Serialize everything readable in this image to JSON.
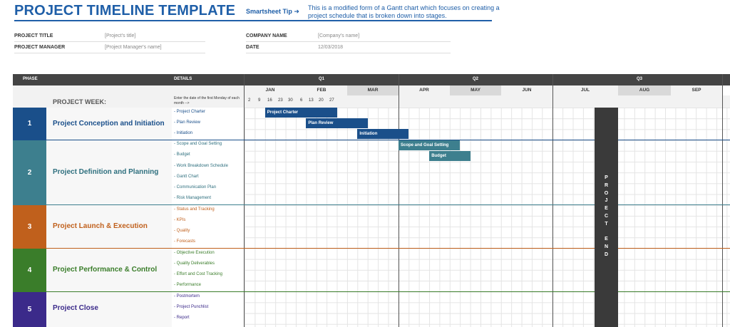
{
  "header": {
    "title": "PROJECT TIMELINE TEMPLATE",
    "tip_label": "Smartsheet Tip ➜",
    "tip_text": "This is a modified form of a Gantt chart which focuses on creating a project schedule that is broken down into stages."
  },
  "info": {
    "project_title_label": "PROJECT TITLE",
    "project_title_value": "[Project's title]",
    "project_manager_label": "PROJECT MANAGER",
    "project_manager_value": "[Project Manager's name]",
    "company_label": "COMPANY NAME",
    "company_value": "[Company's name]",
    "date_label": "DATE",
    "date_value": "12/03/2018"
  },
  "table": {
    "phase_header": "PHASE",
    "details_header": "DETAILS",
    "quarters": [
      "Q1",
      "Q2",
      "Q3"
    ],
    "months": [
      "JAN",
      "FEB",
      "MAR",
      "APR",
      "MAY",
      "JUN",
      "JUL",
      "AUG",
      "SEP"
    ],
    "week_label": "PROJECT WEEK:",
    "week_note": "Enter the date of the first Monday of each month -->",
    "dates": [
      "2",
      "9",
      "16",
      "23",
      "30",
      "6",
      "13",
      "20",
      "27"
    ]
  },
  "phases": [
    {
      "num": "1",
      "name": "Project Conception and Initiation",
      "color": "#1a4f8a",
      "text_color": "#1a4f8a",
      "details": [
        "- Project Charter",
        "- Plan Review",
        "- Initiation"
      ]
    },
    {
      "num": "2",
      "name": "Project Definition and Planning",
      "color": "#3d7f8e",
      "text_color": "#2e6f7e",
      "details": [
        "- Scope and Goal Setting",
        "- Budget",
        "- Work Breakdown Schedule",
        "- Gantt Chart",
        "- Communication Plan",
        "- Risk Management"
      ]
    },
    {
      "num": "3",
      "name": "Project Launch & Execution",
      "color": "#c0601c",
      "text_color": "#c0601c",
      "details": [
        "- Status and Tracking",
        "- KPIs",
        "- Quality",
        "- Forecasts"
      ]
    },
    {
      "num": "4",
      "name": "Project Performance & Control",
      "color": "#3a7d2a",
      "text_color": "#3a7d2a",
      "details": [
        "- Objective Execution",
        "- Quality Deliverables",
        "- Effort and Cost Tracking",
        "- Performance"
      ]
    },
    {
      "num": "5",
      "name": "Project Close",
      "color": "#3b2a8a",
      "text_color": "#3b2a8a",
      "details": [
        "- Postmortem",
        "- Project Punchlist",
        "- Report"
      ]
    }
  ],
  "gantt": {
    "week_unit": "weeks",
    "bars": [
      {
        "label": "Project Charter",
        "start_week": 2,
        "weeks": 7,
        "color": "#1a4f8a"
      },
      {
        "label": "Plan Review",
        "start_week": 6,
        "weeks": 6,
        "color": "#1a4f8a"
      },
      {
        "label": "Initiation",
        "start_week": 11,
        "weeks": 5,
        "color": "#1a4f8a"
      },
      {
        "label": "Scope and Goal Setting",
        "start_week": 15,
        "weeks": 6,
        "color": "#3d7f8e"
      },
      {
        "label": "Budget",
        "start_week": 18,
        "weeks": 4,
        "color": "#3d7f8e"
      }
    ],
    "end_label": [
      "P",
      "R",
      "O",
      "J",
      "E",
      "C",
      "T",
      "",
      "E",
      "N",
      "D"
    ]
  }
}
